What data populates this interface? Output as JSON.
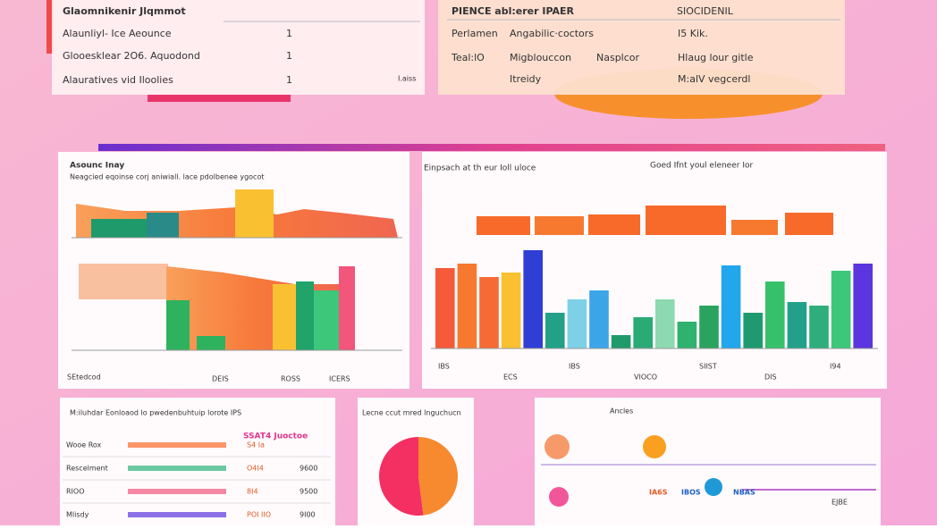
{
  "top_table": {
    "title": "Glaomnikenir Jlqmmot",
    "rows": [
      [
        "Alaunliyl- Ice Aeounce",
        "1"
      ],
      [
        "Glooesklear 2O6. Aquodond",
        "1"
      ],
      [
        "Alauratives vid Iloolies",
        "1"
      ]
    ],
    "note": "I.aiss"
  },
  "top_info": {
    "title": "PIENCE abl:erer IPAER",
    "stat_label": "SIOCIDENIL",
    "rows": [
      [
        "Perlamen",
        "Angabilic·coctors",
        "",
        "I5 Kik."
      ],
      [
        "Teal:lO",
        "Migblouccon",
        "Nasplcor",
        "Hlaug lour gitle"
      ],
      [
        "",
        "Itreidy",
        "",
        "M:alV vegcerdl"
      ]
    ]
  },
  "panel_left": {
    "title": "Asounc Inay",
    "subtitle": "Neagcied  eqoinse corj aniwiall. lace pdolbenee ygocot",
    "labels": [
      "SEtedcod",
      "DEIS",
      "ROSS",
      "ICERS"
    ]
  },
  "panel_right": {
    "title": "Einpsach at th eur Ioll uloce",
    "subtitle": "Goed Ifnt youl eleneer Ior",
    "bars": [
      90,
      95,
      80,
      85,
      110,
      40,
      55,
      65,
      15,
      35,
      55,
      30,
      48,
      93,
      40,
      75,
      52,
      48,
      87,
      95
    ],
    "colors": [
      "#f55a3a",
      "#f7792f",
      "#f66a35",
      "#f9c132",
      "#2f3fd6",
      "#22a088",
      "#7ed0e6",
      "#3ca5e8",
      "#1f9a6a",
      "#2aaa74",
      "#8dd9b0",
      "#2fb26d",
      "#2aa35e",
      "#22a6ec",
      "#1f9a70",
      "#37c06a",
      "#22a08a",
      "#2fae7b",
      "#3cc77a",
      "#5b35dd"
    ],
    "labels": [
      "IBS",
      "ECS",
      "IBS",
      "VIOCO",
      "SIIST",
      "DIS",
      "I94"
    ]
  },
  "bottom_table": {
    "title": "M:iluhdar Eonloaod lo pwedenbuhtuip lorote IPS",
    "header": "SSAT4 Juoctoe",
    "rows": [
      [
        "Wooe Rox",
        "S4 Ia",
        ""
      ],
      [
        "Rescelment",
        "O4I4",
        "9600"
      ],
      [
        "RIOO",
        "8I4",
        "9500"
      ],
      [
        "Mlisdy",
        "POI IIO",
        "9I00"
      ]
    ]
  },
  "pie": {
    "title": "Lecne ccut mred lnguchucn",
    "values": [
      52,
      48
    ],
    "colors": [
      "#f42f62",
      "#f7892f"
    ]
  },
  "timeline": {
    "title": "Ancles",
    "labels": [
      "IA6S",
      "IBOS",
      "NBAS",
      "EJBE"
    ]
  }
}
